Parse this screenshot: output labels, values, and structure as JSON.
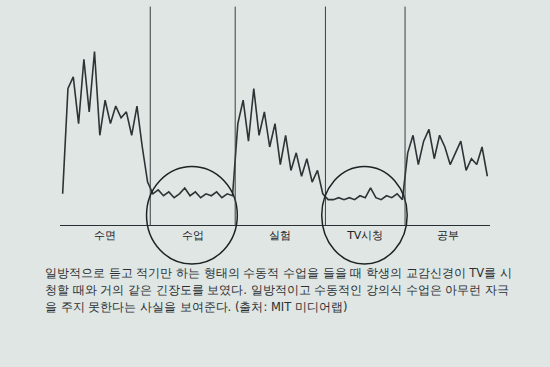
{
  "chart_data": {
    "type": "line",
    "series": [
      {
        "name": "수면",
        "color": "#2f3336",
        "values": [
          16,
          70,
          76,
          52,
          85,
          58,
          89,
          46,
          64,
          52,
          61,
          55,
          58,
          46,
          61,
          40,
          22
        ]
      },
      {
        "name": "수업",
        "color": "#2f3336",
        "values": [
          16,
          18,
          15,
          17,
          14,
          16,
          19,
          15,
          17,
          14,
          16,
          15,
          17,
          14,
          16,
          15
        ]
      },
      {
        "name": "실험",
        "color": "#2f3336",
        "values": [
          52,
          64,
          43,
          70,
          46,
          58,
          40,
          52,
          31,
          46,
          28,
          37,
          25,
          34,
          22,
          28,
          16
        ]
      },
      {
        "name": "TV시청",
        "color": "#2f3336",
        "values": [
          13,
          13,
          14,
          13,
          14,
          13,
          15,
          14,
          19,
          14,
          13,
          15,
          14,
          16,
          13
        ]
      },
      {
        "name": "공부",
        "color": "#2f3336",
        "values": [
          37,
          46,
          31,
          43,
          49,
          34,
          46,
          40,
          31,
          37,
          43,
          28,
          34,
          31,
          40,
          25
        ]
      }
    ],
    "ylim": [
      0,
      100
    ],
    "tick_labels": "x",
    "grid": false,
    "caption": "일방적으로 듣고 적기만 하는 형태의 수동적 수업을 들을 때 학생의 교감신경이 TV를 시청할 때와 거의 같은 긴장도를 보였다. 일방적이고 수동적인 강의식 수업은 아무런 자극을 주지 못한다는 사실을 보여준다. (출처: MIT 미디어랩)"
  }
}
